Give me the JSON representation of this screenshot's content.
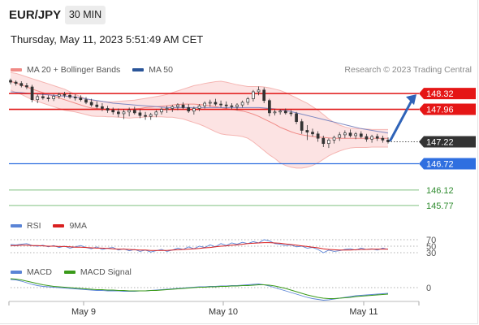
{
  "header": {
    "symbol": "EUR/JPY",
    "timeframe": "30 MIN",
    "datetime": "Thursday, May 11, 2023 5:51:49 AM CET",
    "copyright": "Research © 2023 Trading Central"
  },
  "legends": {
    "price": [
      {
        "label": "MA 20 + Bollinger Bands",
        "color": "#f08a86"
      },
      {
        "label": "MA 50",
        "color": "#2a5599"
      }
    ],
    "rsi": [
      {
        "label": "RSI",
        "color": "#5a84d6"
      },
      {
        "label": "9MA",
        "color": "#d92020"
      }
    ],
    "macd": [
      {
        "label": "MACD",
        "color": "#5a84d6"
      },
      {
        "label": "MACD Signal",
        "color": "#3a9a1a"
      }
    ]
  },
  "chart_data": {
    "type": "candlestick",
    "instrument": "EUR/JPY",
    "interval": "30 MIN",
    "x_labels": [
      "May 9",
      "May 10",
      "May 11"
    ],
    "price_range": [
      145.6,
      148.6
    ],
    "last_price": 147.22,
    "levels": [
      {
        "value": 148.32,
        "label": "148.32",
        "kind": "resistance",
        "color": "#e01515",
        "badge": "red"
      },
      {
        "value": 147.96,
        "label": "147.96",
        "kind": "resistance",
        "color": "#e01515",
        "badge": "red"
      },
      {
        "value": 147.22,
        "label": "147.22",
        "kind": "last",
        "color": "#333333",
        "badge": "dark"
      },
      {
        "value": 146.72,
        "label": "146.72",
        "kind": "pivot",
        "color": "#2f6fe0",
        "badge": "blue"
      },
      {
        "value": 146.12,
        "label": "146.12",
        "kind": "support",
        "color": "#7fc07f",
        "badge": "text"
      },
      {
        "value": 145.77,
        "label": "145.77",
        "kind": "support",
        "color": "#7fc07f",
        "badge": "text"
      }
    ],
    "candles": [
      [
        148.62,
        148.66,
        148.53,
        148.58
      ],
      [
        148.58,
        148.62,
        148.5,
        148.55
      ],
      [
        148.55,
        148.6,
        148.46,
        148.5
      ],
      [
        148.5,
        148.56,
        148.42,
        148.47
      ],
      [
        148.47,
        148.52,
        148.12,
        148.18
      ],
      [
        148.18,
        148.3,
        148.1,
        148.25
      ],
      [
        148.25,
        148.32,
        148.18,
        148.22
      ],
      [
        148.22,
        148.28,
        148.14,
        148.2
      ],
      [
        148.2,
        148.3,
        148.15,
        148.26
      ],
      [
        148.26,
        148.34,
        148.2,
        148.3
      ],
      [
        148.3,
        148.36,
        148.22,
        148.28
      ],
      [
        148.28,
        148.34,
        148.2,
        148.24
      ],
      [
        148.24,
        148.3,
        148.16,
        148.22
      ],
      [
        148.22,
        148.28,
        148.14,
        148.18
      ],
      [
        148.18,
        148.24,
        148.08,
        148.12
      ],
      [
        148.12,
        148.2,
        148.02,
        148.06
      ],
      [
        148.06,
        148.14,
        147.98,
        148.02
      ],
      [
        148.02,
        148.1,
        147.92,
        147.98
      ],
      [
        147.98,
        148.04,
        147.88,
        147.94
      ],
      [
        147.94,
        148.0,
        147.84,
        147.9
      ],
      [
        147.9,
        147.98,
        147.78,
        147.86
      ],
      [
        147.86,
        147.96,
        147.74,
        147.9
      ],
      [
        147.9,
        148.0,
        147.8,
        147.94
      ],
      [
        147.94,
        148.02,
        147.84,
        147.88
      ],
      [
        147.88,
        147.96,
        147.76,
        147.82
      ],
      [
        147.82,
        147.9,
        147.72,
        147.8
      ],
      [
        147.8,
        147.88,
        147.72,
        147.84
      ],
      [
        147.84,
        147.94,
        147.78,
        147.9
      ],
      [
        147.9,
        148.0,
        147.84,
        147.96
      ],
      [
        147.96,
        148.04,
        147.88,
        147.98
      ],
      [
        147.98,
        148.06,
        147.9,
        148.02
      ],
      [
        148.02,
        148.1,
        147.94,
        148.06
      ],
      [
        148.06,
        148.12,
        147.96,
        148.0
      ],
      [
        148.0,
        148.08,
        147.88,
        147.92
      ],
      [
        147.92,
        148.02,
        147.84,
        147.98
      ],
      [
        147.98,
        148.08,
        147.92,
        148.04
      ],
      [
        148.04,
        148.14,
        147.98,
        148.1
      ],
      [
        148.1,
        148.18,
        148.02,
        148.12
      ],
      [
        148.12,
        148.2,
        148.04,
        148.08
      ],
      [
        148.08,
        148.16,
        148.0,
        148.06
      ],
      [
        148.06,
        148.14,
        147.98,
        148.04
      ],
      [
        148.04,
        148.1,
        147.96,
        148.02
      ],
      [
        148.02,
        148.1,
        147.94,
        148.06
      ],
      [
        148.06,
        148.16,
        148.0,
        148.12
      ],
      [
        148.12,
        148.24,
        148.06,
        148.2
      ],
      [
        148.2,
        148.4,
        148.14,
        148.36
      ],
      [
        148.36,
        148.48,
        148.28,
        148.4
      ],
      [
        148.4,
        148.46,
        148.1,
        148.16
      ],
      [
        148.16,
        148.2,
        147.8,
        147.88
      ],
      [
        147.88,
        147.96,
        147.82,
        147.9
      ],
      [
        147.9,
        147.96,
        147.84,
        147.92
      ],
      [
        147.92,
        147.98,
        147.84,
        147.88
      ],
      [
        147.88,
        147.94,
        147.8,
        147.86
      ],
      [
        147.86,
        147.9,
        147.62,
        147.68
      ],
      [
        147.68,
        147.74,
        147.4,
        147.48
      ],
      [
        147.48,
        147.6,
        147.26,
        147.44
      ],
      [
        147.44,
        147.52,
        147.34,
        147.4
      ],
      [
        147.4,
        147.46,
        147.22,
        147.3
      ],
      [
        147.3,
        147.36,
        147.1,
        147.18
      ],
      [
        147.18,
        147.3,
        147.08,
        147.26
      ],
      [
        147.26,
        147.36,
        147.18,
        147.32
      ],
      [
        147.32,
        147.44,
        147.24,
        147.38
      ],
      [
        147.38,
        147.48,
        147.3,
        147.42
      ],
      [
        147.42,
        147.5,
        147.32,
        147.36
      ],
      [
        147.36,
        147.44,
        147.28,
        147.4
      ],
      [
        147.4,
        147.46,
        147.3,
        147.34
      ],
      [
        147.34,
        147.4,
        147.22,
        147.28
      ],
      [
        147.28,
        147.38,
        147.2,
        147.34
      ],
      [
        147.34,
        147.4,
        147.24,
        147.3
      ],
      [
        147.3,
        147.36,
        147.2,
        147.26
      ],
      [
        147.26,
        147.32,
        147.18,
        147.22
      ]
    ],
    "ma20": [
      148.6,
      148.56,
      148.52,
      148.47,
      148.42,
      148.38,
      148.34,
      148.3,
      148.26,
      148.22,
      148.18,
      148.14,
      148.1,
      148.06,
      148.02,
      147.99,
      147.98,
      147.97,
      147.96,
      147.96,
      147.96,
      147.96,
      147.96,
      147.97,
      147.98,
      148.0,
      148.01,
      148.02,
      148.03,
      148.04,
      148.06,
      148.07,
      148.08,
      148.08,
      148.08,
      148.07,
      148.06,
      148.04,
      148.02,
      148.0,
      147.98,
      147.96,
      147.94,
      147.92,
      147.89,
      147.85,
      147.8,
      147.74,
      147.68,
      147.62,
      147.55,
      147.5,
      147.45,
      147.41,
      147.38,
      147.36,
      147.34,
      147.33,
      147.32,
      147.31,
      147.3,
      147.3,
      147.3,
      147.3,
      147.3,
      147.3,
      147.3,
      147.3,
      147.3,
      147.3,
      147.3
    ],
    "bb_upper": [
      148.8,
      148.78,
      148.74,
      148.7,
      148.66,
      148.62,
      148.58,
      148.54,
      148.5,
      148.46,
      148.42,
      148.36,
      148.3,
      148.25,
      148.2,
      148.17,
      148.15,
      148.14,
      148.13,
      148.13,
      148.14,
      148.15,
      148.16,
      148.17,
      148.19,
      148.21,
      148.23,
      148.25,
      148.27,
      148.3,
      148.34,
      148.38,
      148.42,
      148.46,
      148.5,
      148.52,
      148.55,
      148.57,
      148.59,
      148.6,
      148.58,
      148.55,
      148.52,
      148.5,
      148.48,
      148.48,
      148.48,
      148.47,
      148.45,
      148.42,
      148.39,
      148.34,
      148.28,
      148.22,
      148.16,
      148.1,
      148.02,
      147.94,
      147.84,
      147.74,
      147.66,
      147.6,
      147.56,
      147.53,
      147.52,
      147.52,
      147.51,
      147.5,
      147.5,
      147.5,
      147.5
    ],
    "bb_lower": [
      148.4,
      148.34,
      148.3,
      148.24,
      148.18,
      148.14,
      148.1,
      148.06,
      148.02,
      147.98,
      147.94,
      147.92,
      147.9,
      147.87,
      147.84,
      147.81,
      147.8,
      147.8,
      147.79,
      147.79,
      147.78,
      147.77,
      147.76,
      147.77,
      147.77,
      147.79,
      147.79,
      147.79,
      147.79,
      147.78,
      147.78,
      147.76,
      147.74,
      147.7,
      147.66,
      147.62,
      147.57,
      147.51,
      147.45,
      147.4,
      147.38,
      147.37,
      147.36,
      147.34,
      147.3,
      147.22,
      147.12,
      147.02,
      146.92,
      146.84,
      146.74,
      146.68,
      146.64,
      146.62,
      146.62,
      146.64,
      146.68,
      146.74,
      146.82,
      146.9,
      146.96,
      147.01,
      147.05,
      147.08,
      147.09,
      147.09,
      147.09,
      147.1,
      147.1,
      147.1,
      147.1
    ],
    "ma50": [
      148.36,
      148.35,
      148.34,
      148.33,
      148.32,
      148.31,
      148.3,
      148.29,
      148.28,
      148.27,
      148.26,
      148.25,
      148.24,
      148.22,
      148.2,
      148.18,
      148.16,
      148.14,
      148.12,
      148.1,
      148.09,
      148.08,
      148.07,
      148.06,
      148.05,
      148.04,
      148.03,
      148.02,
      148.01,
      148.0,
      148.0,
      148.0,
      148.0,
      148.0,
      148.0,
      148.0,
      148.0,
      148.0,
      148.0,
      148.0,
      148.0,
      148.0,
      148.0,
      148.0,
      148.0,
      148.0,
      148.0,
      147.99,
      147.98,
      147.97,
      147.95,
      147.93,
      147.91,
      147.88,
      147.85,
      147.82,
      147.79,
      147.76,
      147.73,
      147.7,
      147.67,
      147.64,
      147.61,
      147.58,
      147.55,
      147.52,
      147.5,
      147.48,
      147.46,
      147.44,
      147.42
    ],
    "rsi": {
      "levels": [
        70,
        50,
        30
      ],
      "range": [
        0,
        100
      ],
      "values": [
        55,
        54,
        56,
        58,
        52,
        50,
        53,
        48,
        52,
        46,
        50,
        44,
        48,
        52,
        46,
        42,
        48,
        40,
        44,
        46,
        38,
        42,
        36,
        40,
        34,
        38,
        32,
        36,
        40,
        34,
        38,
        44,
        40,
        48,
        42,
        50,
        46,
        54,
        48,
        58,
        52,
        60,
        56,
        62,
        58,
        64,
        60,
        70,
        66,
        58,
        56,
        52,
        54,
        48,
        50,
        44,
        46,
        40,
        30,
        38,
        34,
        36,
        40,
        42,
        38,
        44,
        40,
        42,
        38,
        44,
        40
      ],
      "ma9": [
        52,
        52,
        53,
        53,
        52,
        52,
        51,
        50,
        50,
        49,
        49,
        48,
        47,
        47,
        46,
        45,
        44,
        44,
        43,
        42,
        41,
        41,
        40,
        39,
        38,
        38,
        37,
        37,
        37,
        37,
        38,
        39,
        40,
        41,
        42,
        43,
        45,
        46,
        48,
        50,
        51,
        53,
        54,
        56,
        58,
        59,
        60,
        61,
        61,
        60,
        59,
        57,
        55,
        53,
        51,
        49,
        47,
        45,
        42,
        40,
        39,
        38,
        38,
        38,
        39,
        40,
        40,
        41,
        41,
        41,
        41
      ]
    },
    "macd": {
      "zero_level": 0,
      "macd": [
        0.2,
        0.19,
        0.16,
        0.12,
        0.08,
        0.05,
        0.03,
        0.02,
        0.01,
        0.0,
        -0.01,
        -0.02,
        -0.03,
        -0.04,
        -0.05,
        -0.06,
        -0.07,
        -0.07,
        -0.08,
        -0.08,
        -0.08,
        -0.09,
        -0.09,
        -0.09,
        -0.08,
        -0.08,
        -0.07,
        -0.06,
        -0.05,
        -0.04,
        -0.03,
        -0.02,
        -0.01,
        0.0,
        0.01,
        0.02,
        0.02,
        0.03,
        0.03,
        0.04,
        0.04,
        0.05,
        0.05,
        0.06,
        0.07,
        0.08,
        0.09,
        0.07,
        0.04,
        0.0,
        -0.04,
        -0.08,
        -0.12,
        -0.16,
        -0.2,
        -0.24,
        -0.27,
        -0.29,
        -0.31,
        -0.3,
        -0.28,
        -0.26,
        -0.24,
        -0.22,
        -0.2,
        -0.19,
        -0.18,
        -0.17,
        -0.16,
        -0.15,
        -0.14
      ],
      "signal": [
        0.22,
        0.21,
        0.19,
        0.16,
        0.13,
        0.1,
        0.07,
        0.05,
        0.03,
        0.02,
        0.01,
        0.0,
        -0.01,
        -0.02,
        -0.03,
        -0.04,
        -0.05,
        -0.05,
        -0.06,
        -0.06,
        -0.07,
        -0.07,
        -0.08,
        -0.08,
        -0.08,
        -0.08,
        -0.07,
        -0.07,
        -0.06,
        -0.05,
        -0.04,
        -0.03,
        -0.02,
        -0.01,
        0.0,
        0.01,
        0.01,
        0.02,
        0.02,
        0.03,
        0.03,
        0.04,
        0.04,
        0.05,
        0.05,
        0.06,
        0.07,
        0.07,
        0.06,
        0.04,
        0.01,
        -0.02,
        -0.06,
        -0.1,
        -0.14,
        -0.18,
        -0.21,
        -0.24,
        -0.26,
        -0.27,
        -0.27,
        -0.26,
        -0.25,
        -0.24,
        -0.22,
        -0.21,
        -0.2,
        -0.19,
        -0.18,
        -0.17,
        -0.16
      ]
    }
  }
}
